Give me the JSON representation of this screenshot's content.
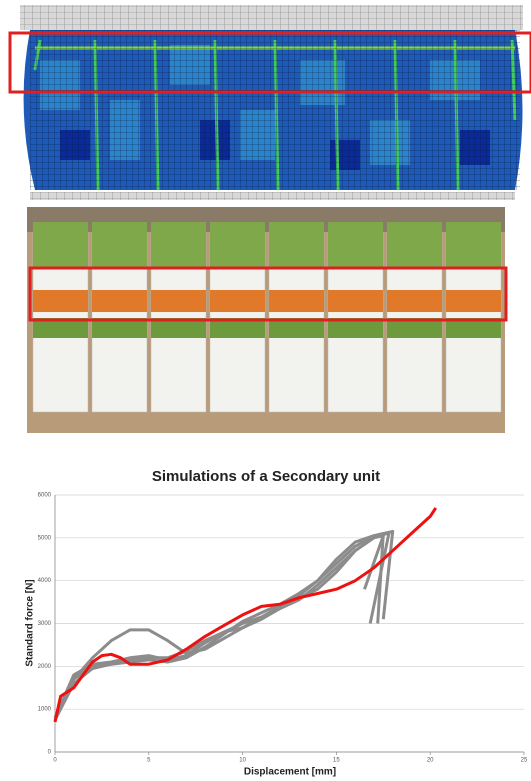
{
  "chart_data": {
    "type": "line",
    "title": "Simulations of a Secondary unit",
    "x_label": "Displacement [mm]",
    "y_label": "Standard force [N]",
    "xlim": [
      0,
      25
    ],
    "xticks": [
      0,
      5,
      10,
      15,
      20,
      25
    ],
    "ylim": [
      0,
      6000
    ],
    "yticks": [
      0,
      1000,
      2000,
      3000,
      4000,
      5000,
      6000
    ],
    "grid": true,
    "series": [
      {
        "color": "#8c8c8c",
        "x": [
          0,
          1,
          2,
          3,
          4,
          5,
          6,
          7,
          8,
          10,
          12,
          14,
          15,
          16,
          17,
          17.5,
          17.2
        ],
        "values": [
          800,
          1700,
          2200,
          2600,
          2850,
          2850,
          2600,
          2300,
          2400,
          2900,
          3400,
          3800,
          4200,
          4700,
          5000,
          5100,
          3000
        ]
      },
      {
        "color": "#8c8c8c",
        "x": [
          0,
          1,
          2,
          3,
          4,
          5,
          6,
          7,
          8,
          9,
          10,
          11,
          12,
          13,
          14,
          15,
          16,
          17,
          17.5,
          16.5
        ],
        "values": [
          800,
          1800,
          2050,
          2100,
          2200,
          2250,
          2150,
          2250,
          2550,
          2800,
          3000,
          3150,
          3350,
          3550,
          3900,
          4300,
          4700,
          5000,
          5050,
          3800
        ]
      },
      {
        "color": "#8c8c8c",
        "x": [
          0,
          1,
          2,
          3,
          4,
          5,
          6,
          7,
          8,
          9,
          10,
          11,
          12,
          13,
          14,
          15,
          16,
          17,
          17.8,
          16.8
        ],
        "values": [
          800,
          1700,
          2000,
          2050,
          2100,
          2150,
          2100,
          2200,
          2450,
          2750,
          3050,
          3250,
          3450,
          3700,
          4000,
          4400,
          4800,
          5050,
          5100,
          3000
        ]
      },
      {
        "color": "#8c8c8c",
        "x": [
          0,
          1,
          2,
          3,
          4,
          5,
          6,
          7,
          8,
          9,
          10,
          11,
          12,
          13,
          14,
          15,
          16,
          17,
          18,
          17.5
        ],
        "values": [
          750,
          1600,
          1950,
          2050,
          2150,
          2200,
          2200,
          2350,
          2600,
          2800,
          2900,
          3100,
          3350,
          3650,
          4000,
          4500,
          4900,
          5050,
          5150,
          3100
        ]
      },
      {
        "color": "#ee1111",
        "x": [
          0,
          0.3,
          1,
          2,
          2.5,
          3,
          3.5,
          4,
          5,
          6,
          7,
          8,
          9,
          10,
          11,
          12,
          13,
          14,
          15,
          16,
          17,
          18,
          19,
          20,
          20.3
        ],
        "values": [
          700,
          1300,
          1500,
          2100,
          2250,
          2280,
          2200,
          2050,
          2050,
          2150,
          2400,
          2700,
          2950,
          3200,
          3400,
          3450,
          3600,
          3700,
          3800,
          4000,
          4300,
          4700,
          5100,
          5500,
          5700
        ]
      }
    ]
  }
}
